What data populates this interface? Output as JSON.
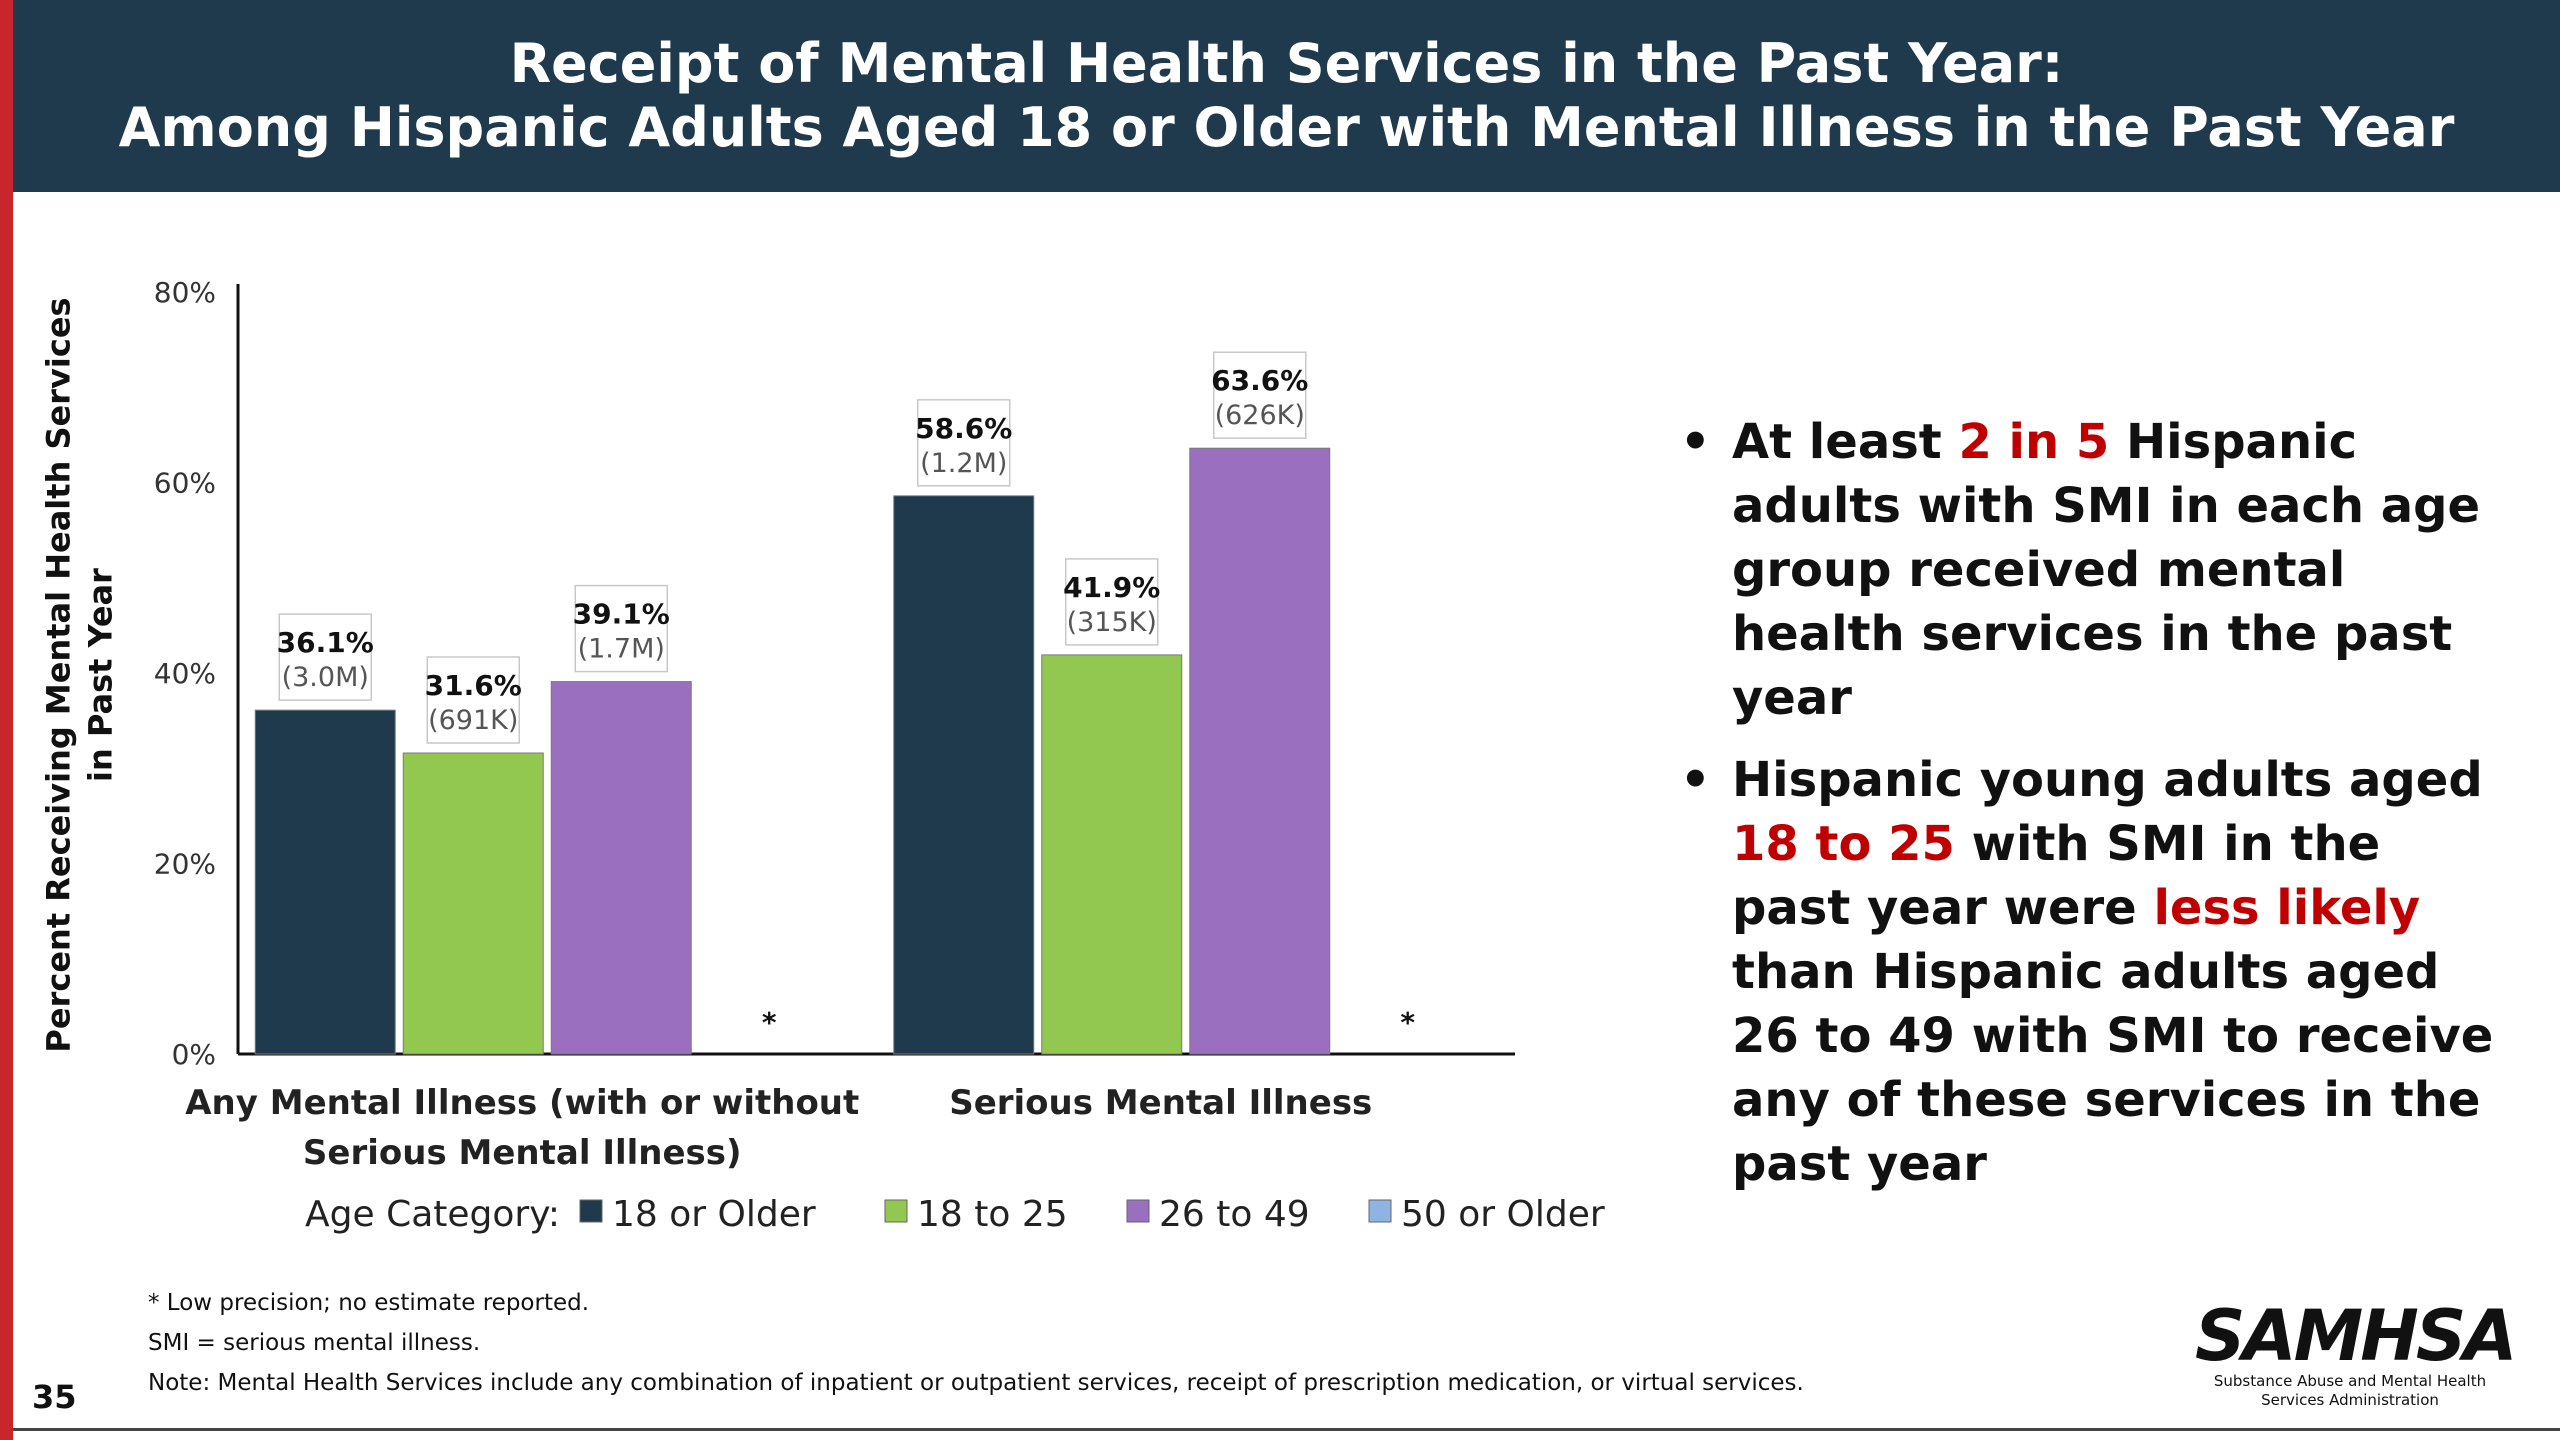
{
  "header": {
    "title_line1": "Receipt of Mental Health Services in the Past Year:",
    "title_line2": "Among Hispanic Adults Aged 18 or Older with Mental Illness in the Past Year"
  },
  "chart_data": {
    "type": "bar",
    "ylabel_line1": "Percent Receiving Mental Health Services",
    "ylabel_line2": "in Past Year",
    "ylim": [
      0,
      80
    ],
    "yticks": [
      "0%",
      "20%",
      "40%",
      "60%",
      "80%"
    ],
    "grid": false,
    "legend_position": "bottom",
    "legend_title": "Age Category:",
    "categories": [
      "Any Mental Illness (with or without Serious Mental Illness)",
      "Serious Mental Illness"
    ],
    "category_label_lines": [
      [
        "Any Mental Illness (with or without",
        "Serious Mental Illness)"
      ],
      [
        "Serious Mental Illness"
      ]
    ],
    "series": [
      {
        "name": "18 or Older",
        "color": "#1f3a4d",
        "values": [
          36.1,
          58.6
        ],
        "labels": [
          "36.1%",
          "58.6%"
        ],
        "counts": [
          "(3.0M)",
          "(1.2M)"
        ]
      },
      {
        "name": "18 to 25",
        "color": "#92c850",
        "values": [
          31.6,
          41.9
        ],
        "labels": [
          "31.6%",
          "41.9%"
        ],
        "counts": [
          "(691K)",
          "(315K)"
        ]
      },
      {
        "name": "26 to 49",
        "color": "#9b6fc0",
        "values": [
          39.1,
          63.6
        ],
        "labels": [
          "39.1%",
          "63.6%"
        ],
        "counts": [
          "(1.7M)",
          "(626K)"
        ]
      },
      {
        "name": "50 or Older",
        "color": "#8fb4e3",
        "values": [
          null,
          null
        ],
        "labels": [
          "*",
          "*"
        ],
        "counts": [
          "",
          ""
        ]
      }
    ]
  },
  "bullets": {
    "b1": {
      "pre": "At least ",
      "hl": "2 in 5",
      "post": " Hispanic adults with SMI in each age group received mental health services in the past year"
    },
    "b2": {
      "pre": "Hispanic young adults aged ",
      "hl1": "18 to 25",
      "mid": " with SMI in the past year were ",
      "hl2": "less likely",
      "post": " than Hispanic adults aged 26 to 49 with SMI to receive any of these services in the past year"
    }
  },
  "footnotes": {
    "f1": "* Low precision; no estimate reported.",
    "f2": "SMI = serious mental illness.",
    "f3": "Note: Mental Health Services include any combination of inpatient or outpatient services, receipt of prescription medication, or virtual services."
  },
  "page_number": "35",
  "logo": {
    "word": "SAMHSA",
    "sub_line1": "Substance Abuse and Mental Health",
    "sub_line2": "Services Administration"
  }
}
